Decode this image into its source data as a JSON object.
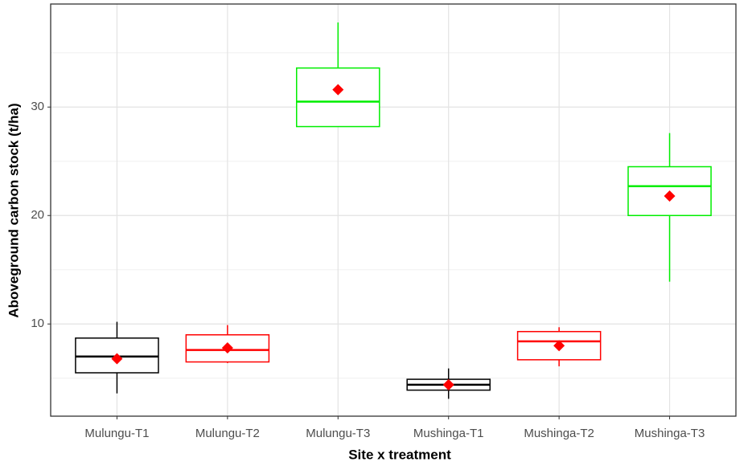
{
  "chart_data": {
    "type": "box",
    "x_label": "Site x treatment",
    "y_label": "Aboveground carbon stock (t/ha)",
    "categories": [
      "Mulungu-T1",
      "Mulungu-T2",
      "Mulungu-T3",
      "Mushinga-T1",
      "Mushinga-T2",
      "Mushinga-T3"
    ],
    "boxes": [
      {
        "low": 3.6,
        "q1": 5.5,
        "median": 7.0,
        "q3": 8.7,
        "high": 10.2,
        "mean": 6.8,
        "color": "#000000"
      },
      {
        "low": 6.4,
        "q1": 6.5,
        "median": 7.6,
        "q3": 9.0,
        "high": 9.9,
        "mean": 7.8,
        "color": "#ff0000"
      },
      {
        "low": 28.2,
        "q1": 28.2,
        "median": 30.5,
        "q3": 33.6,
        "high": 37.8,
        "mean": 31.6,
        "color": "#00ee00"
      },
      {
        "low": 3.1,
        "q1": 3.9,
        "median": 4.4,
        "q3": 4.9,
        "high": 5.9,
        "mean": 4.4,
        "color": "#000000"
      },
      {
        "low": 6.1,
        "q1": 6.7,
        "median": 8.4,
        "q3": 9.3,
        "high": 9.7,
        "mean": 8.0,
        "color": "#ff0000"
      },
      {
        "low": 13.9,
        "q1": 20.0,
        "median": 22.7,
        "q3": 24.5,
        "high": 27.6,
        "mean": 21.8,
        "color": "#00ee00"
      }
    ],
    "mean_color": "#ff0000",
    "ylim": [
      1.5,
      39.5
    ],
    "yticks": [
      10,
      20,
      30
    ],
    "minor_yticks": [
      5,
      15,
      25,
      35
    ],
    "grid": true
  }
}
